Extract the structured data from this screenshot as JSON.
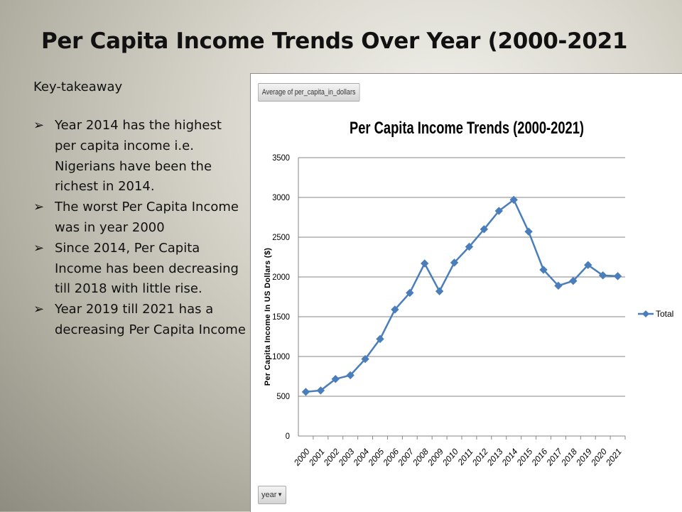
{
  "slide": {
    "title": "Per Capita Income Trends Over Year (2000-2021",
    "takeaway_heading": "Key-takeaway",
    "bullet_glyph": "➢",
    "takeaways": [
      "Year 2014 has the highest per capita income  i.e. Nigerians have been the richest in 2014.",
      "The worst Per Capita Income  was in year 2000",
      "Since 2014, Per Capita Income has been decreasing  till 2018 with little rise.",
      "Year 2019 till 2021 has a decreasing Per Capita Income"
    ]
  },
  "pivot": {
    "value_field_button": "Average of per_capita_in_dollars",
    "axis_field_button": "year",
    "dropdown_glyph": "▼"
  },
  "chart_data": {
    "type": "line",
    "title": "Per Capita Income Trends (2000-2021)",
    "xlabel": "",
    "ylabel": "Per Capita Income In US Dollars ($)",
    "ylim": [
      0,
      3500
    ],
    "yticks": [
      0,
      500,
      1000,
      1500,
      2000,
      2500,
      3000,
      3500
    ],
    "grid": true,
    "legend_position": "right",
    "categories": [
      "2000",
      "2001",
      "2002",
      "2003",
      "2004",
      "2005",
      "2006",
      "2007",
      "2008",
      "2009",
      "2010",
      "2011",
      "2012",
      "2013",
      "2014",
      "2015",
      "2016",
      "2017",
      "2018",
      "2019",
      "2020",
      "2021"
    ],
    "series": [
      {
        "name": "Total",
        "color": "#4a7ebb",
        "values": [
          555,
          572,
          717,
          764,
          968,
          1220,
          1590,
          1800,
          2170,
          1820,
          2180,
          2380,
          2600,
          2830,
          2970,
          2570,
          2090,
          1890,
          1950,
          2150,
          2020,
          2010
        ]
      }
    ]
  }
}
